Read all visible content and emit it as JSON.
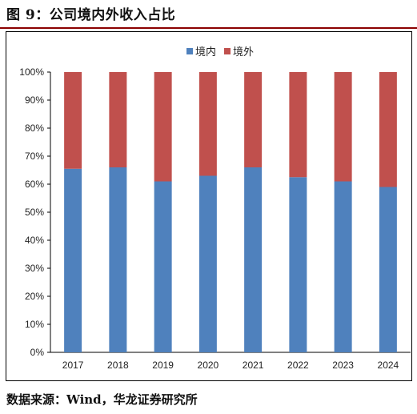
{
  "figure": {
    "title": "图 9：公司境内外收入占比",
    "source": "数据来源：Wind，华龙证券研究所"
  },
  "chart_data": {
    "type": "bar",
    "stacked": true,
    "categories": [
      "2017",
      "2018",
      "2019",
      "2020",
      "2021",
      "2022",
      "2023",
      "2024"
    ],
    "series": [
      {
        "name": "境内",
        "color": "#4f81bd",
        "values": [
          65.5,
          66.0,
          61.0,
          63.0,
          66.0,
          62.5,
          61.0,
          59.0
        ]
      },
      {
        "name": "境外",
        "color": "#c0504d",
        "values": [
          34.5,
          34.0,
          39.0,
          37.0,
          34.0,
          37.5,
          39.0,
          41.0
        ]
      }
    ],
    "yticks": [
      "0%",
      "10%",
      "20%",
      "30%",
      "40%",
      "50%",
      "60%",
      "70%",
      "80%",
      "90%",
      "100%"
    ],
    "ylim": [
      0,
      100
    ],
    "grid": false,
    "legend": "top-right"
  }
}
